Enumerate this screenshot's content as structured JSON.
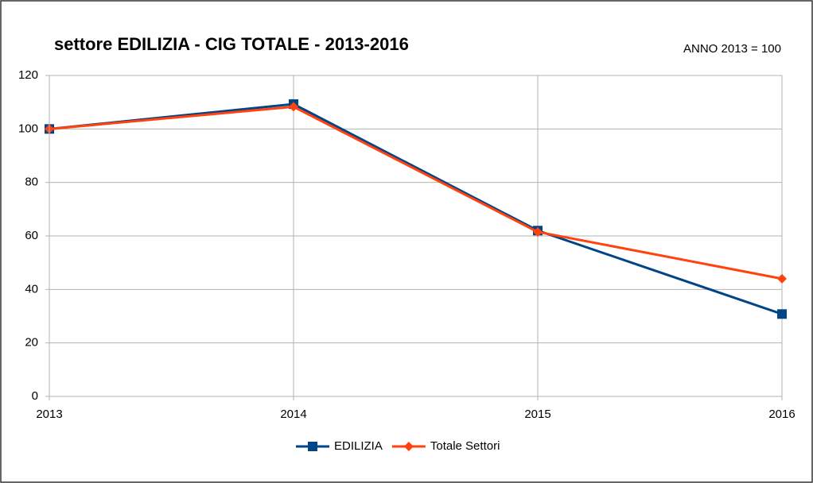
{
  "chart_data": {
    "type": "line",
    "title": "settore EDILIZIA - CIG TOTALE - 2013-2016",
    "annotation": "ANNO 2013 = 100",
    "x": [
      2013,
      2014,
      2015,
      2016
    ],
    "series": [
      {
        "name": "EDILIZIA",
        "color": "#004586",
        "marker": "square",
        "values": [
          100,
          109.3,
          62,
          30.8
        ]
      },
      {
        "name": "Totale Settori",
        "color": "#ff420e",
        "marker": "diamond",
        "values": [
          100,
          108.3,
          61.5,
          44
        ]
      }
    ],
    "xlim": [
      2013,
      2016
    ],
    "xticks": [
      2013,
      2014,
      2015,
      2016
    ],
    "ylim": [
      0,
      120
    ],
    "yticks": [
      0,
      20,
      40,
      60,
      80,
      100,
      120
    ],
    "grid": true,
    "legend": "bottom"
  }
}
